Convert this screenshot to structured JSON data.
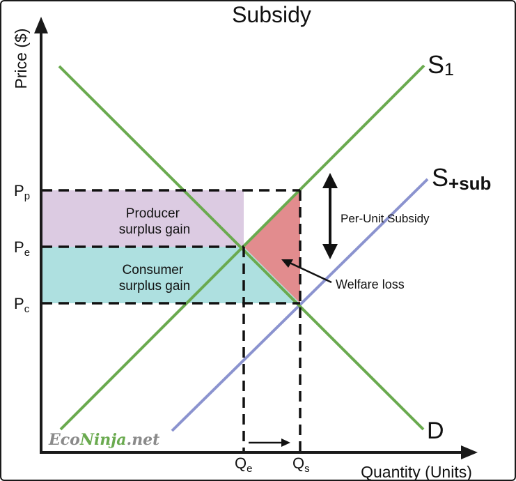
{
  "title": "Subsidy",
  "axes": {
    "y_label": "Price ($)",
    "x_label": "Quantity (Units)"
  },
  "curves": {
    "s1": {
      "base": "S",
      "sub": "1"
    },
    "s_sub": {
      "base": "S",
      "sub": "+sub"
    },
    "demand": {
      "label": "D"
    }
  },
  "prices": {
    "pp": {
      "base": "P",
      "sub": "p"
    },
    "pe": {
      "base": "P",
      "sub": "e"
    },
    "pc": {
      "base": "P",
      "sub": "c"
    }
  },
  "quantities": {
    "qe": {
      "base": "Q",
      "sub": "e"
    },
    "qs": {
      "base": "Q",
      "sub": "s"
    }
  },
  "areas": {
    "producer": {
      "line1": "Producer",
      "line2": "surplus gain"
    },
    "consumer": {
      "line1": "Consumer",
      "line2": "surplus gain"
    },
    "welfare_loss": "Welfare loss"
  },
  "annotations": {
    "per_unit_subsidy": "Per-Unit Subsidy"
  },
  "watermark": {
    "part1": "Eco",
    "part2": "Ninja",
    "part3": ".net"
  },
  "colors": {
    "supply_demand": "#6aaa4f",
    "subsidized_supply": "#8b93cf",
    "producer_area": "#dccbe2",
    "consumer_area": "#aee0e0",
    "welfare_loss_area": "#e28c8e",
    "axis": "#1a1a1a",
    "watermark_gray": "#8a8a8a",
    "watermark_green": "#6aaa4f"
  }
}
